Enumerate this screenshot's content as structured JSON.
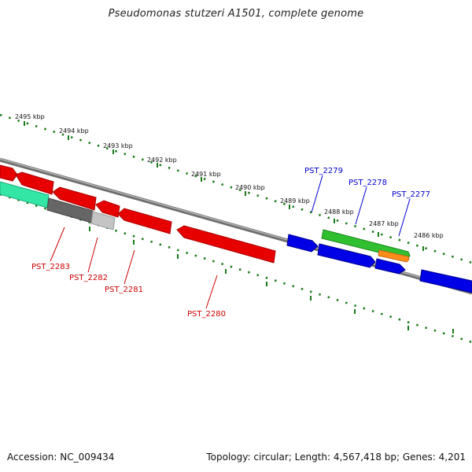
{
  "title": "Pseudomonas stutzeri A1501, complete genome",
  "footer": {
    "accession": "Accession: NC_009434",
    "summary": "Topology: circular; Length: 4,567,418 bp; Genes: 4,201"
  },
  "ruler": {
    "color": "#1a7a1a",
    "labels": [
      "2495 kbp",
      "2494 kbp",
      "2493 kbp",
      "2492 kbp",
      "2491 kbp",
      "2490 kbp",
      "2489 kbp",
      "2488 kbp",
      "2487 kbp",
      "2486 kbp"
    ]
  },
  "genes": {
    "forward_labels": [
      "PST_2279",
      "PST_2278",
      "PST_2277"
    ],
    "reverse_labels": [
      "PST_2283",
      "PST_2282",
      "PST_2281",
      "PST_2280"
    ],
    "colors": {
      "forward_label": "#0000cc",
      "reverse_label": "#cc0000",
      "blue_feature": "#0000e6",
      "red_feature": "#e60000",
      "green_feature": "#2fbf2f",
      "orange_feature": "#ff8c1a",
      "teal_feature": "#33e6a6",
      "dark_gray_feature": "#666666",
      "light_gray_feature": "#bbbbbb",
      "backbone": "#888888"
    }
  }
}
